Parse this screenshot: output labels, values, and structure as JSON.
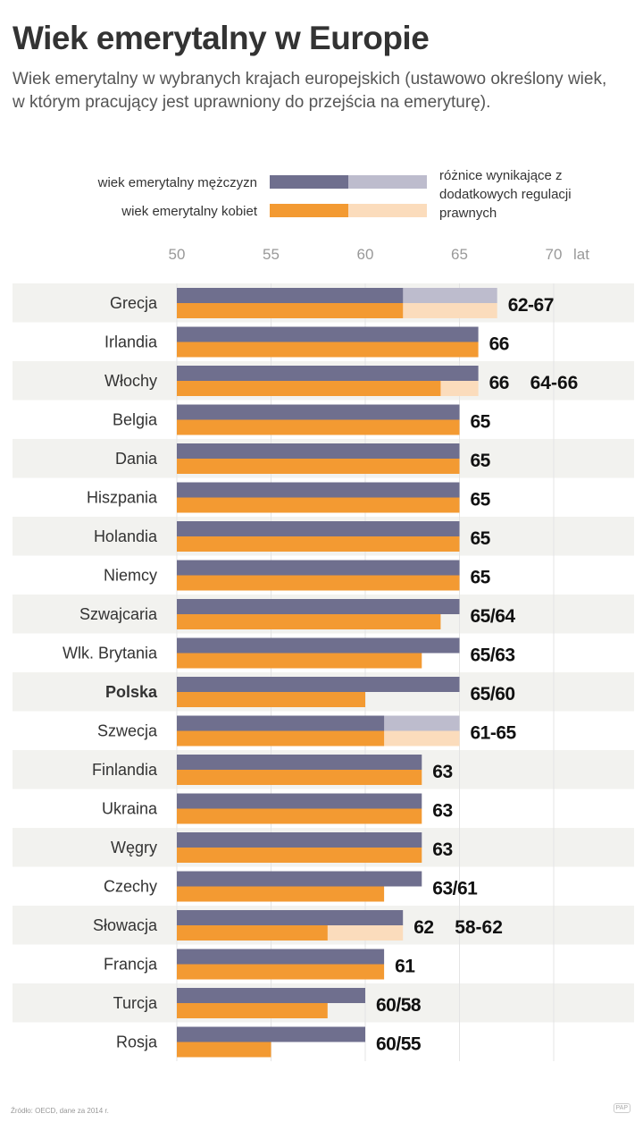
{
  "title": "Wiek emerytalny w Europie",
  "subtitle": "Wiek emerytalny w wybranych krajach europejskich (ustawowo określony wiek, w którym pracujący jest uprawniony do przejścia na emeryturę).",
  "footer": "Źródło: OECD, dane za 2014 r.",
  "logo": "PAP",
  "colors": {
    "men": "#6f6f8e",
    "men_ext": "#bdbccd",
    "women": "#f39a32",
    "women_ext": "#fbdcbc",
    "band": "#f2f2ef"
  },
  "chart_data": {
    "type": "bar",
    "orientation": "horizontal",
    "legend": {
      "men": "wiek emerytalny mężczyzn",
      "women": "wiek emerytalny kobiet",
      "range": "różnice wynikające z dodatkowych regulacji prawnych",
      "placement": "top"
    },
    "xlim": [
      50,
      71
    ],
    "xticks": [
      "50",
      "55",
      "60",
      "65",
      "70"
    ],
    "xunit": "lat",
    "grid": true,
    "rows": [
      {
        "country": "Grecja",
        "men": 62,
        "men_max": 67,
        "women": 62,
        "women_max": 67,
        "label": "62-67"
      },
      {
        "country": "Irlandia",
        "men": 66,
        "women": 66,
        "label": "66"
      },
      {
        "country": "Włochy",
        "men": 66,
        "women": 64,
        "women_max": 66,
        "label": "66",
        "label2": "64-66"
      },
      {
        "country": "Belgia",
        "men": 65,
        "women": 65,
        "label": "65"
      },
      {
        "country": "Dania",
        "men": 65,
        "women": 65,
        "label": "65"
      },
      {
        "country": "Hiszpania",
        "men": 65,
        "women": 65,
        "label": "65"
      },
      {
        "country": "Holandia",
        "men": 65,
        "women": 65,
        "label": "65"
      },
      {
        "country": "Niemcy",
        "men": 65,
        "women": 65,
        "label": "65"
      },
      {
        "country": "Szwajcaria",
        "men": 65,
        "women": 64,
        "label": "65/64"
      },
      {
        "country": "Wlk. Brytania",
        "men": 65,
        "women": 63,
        "label": "65/63"
      },
      {
        "country": "Polska",
        "men": 65,
        "women": 60,
        "label": "65/60",
        "bold": true
      },
      {
        "country": "Szwecja",
        "men": 61,
        "men_max": 65,
        "women": 61,
        "women_max": 65,
        "label": "61-65"
      },
      {
        "country": "Finlandia",
        "men": 63,
        "women": 63,
        "label": "63"
      },
      {
        "country": "Ukraina",
        "men": 63,
        "women": 63,
        "label": "63"
      },
      {
        "country": "Węgry",
        "men": 63,
        "women": 63,
        "label": "63"
      },
      {
        "country": "Czechy",
        "men": 63,
        "women": 61,
        "label": "63/61"
      },
      {
        "country": "Słowacja",
        "men": 62,
        "women": 58,
        "women_max": 62,
        "label": "62",
        "label2": "58-62"
      },
      {
        "country": "Francja",
        "men": 61,
        "women": 61,
        "label": "61"
      },
      {
        "country": "Turcja",
        "men": 60,
        "women": 58,
        "label": "60/58"
      },
      {
        "country": "Rosja",
        "men": 60,
        "women": 55,
        "label": "60/55"
      }
    ]
  }
}
